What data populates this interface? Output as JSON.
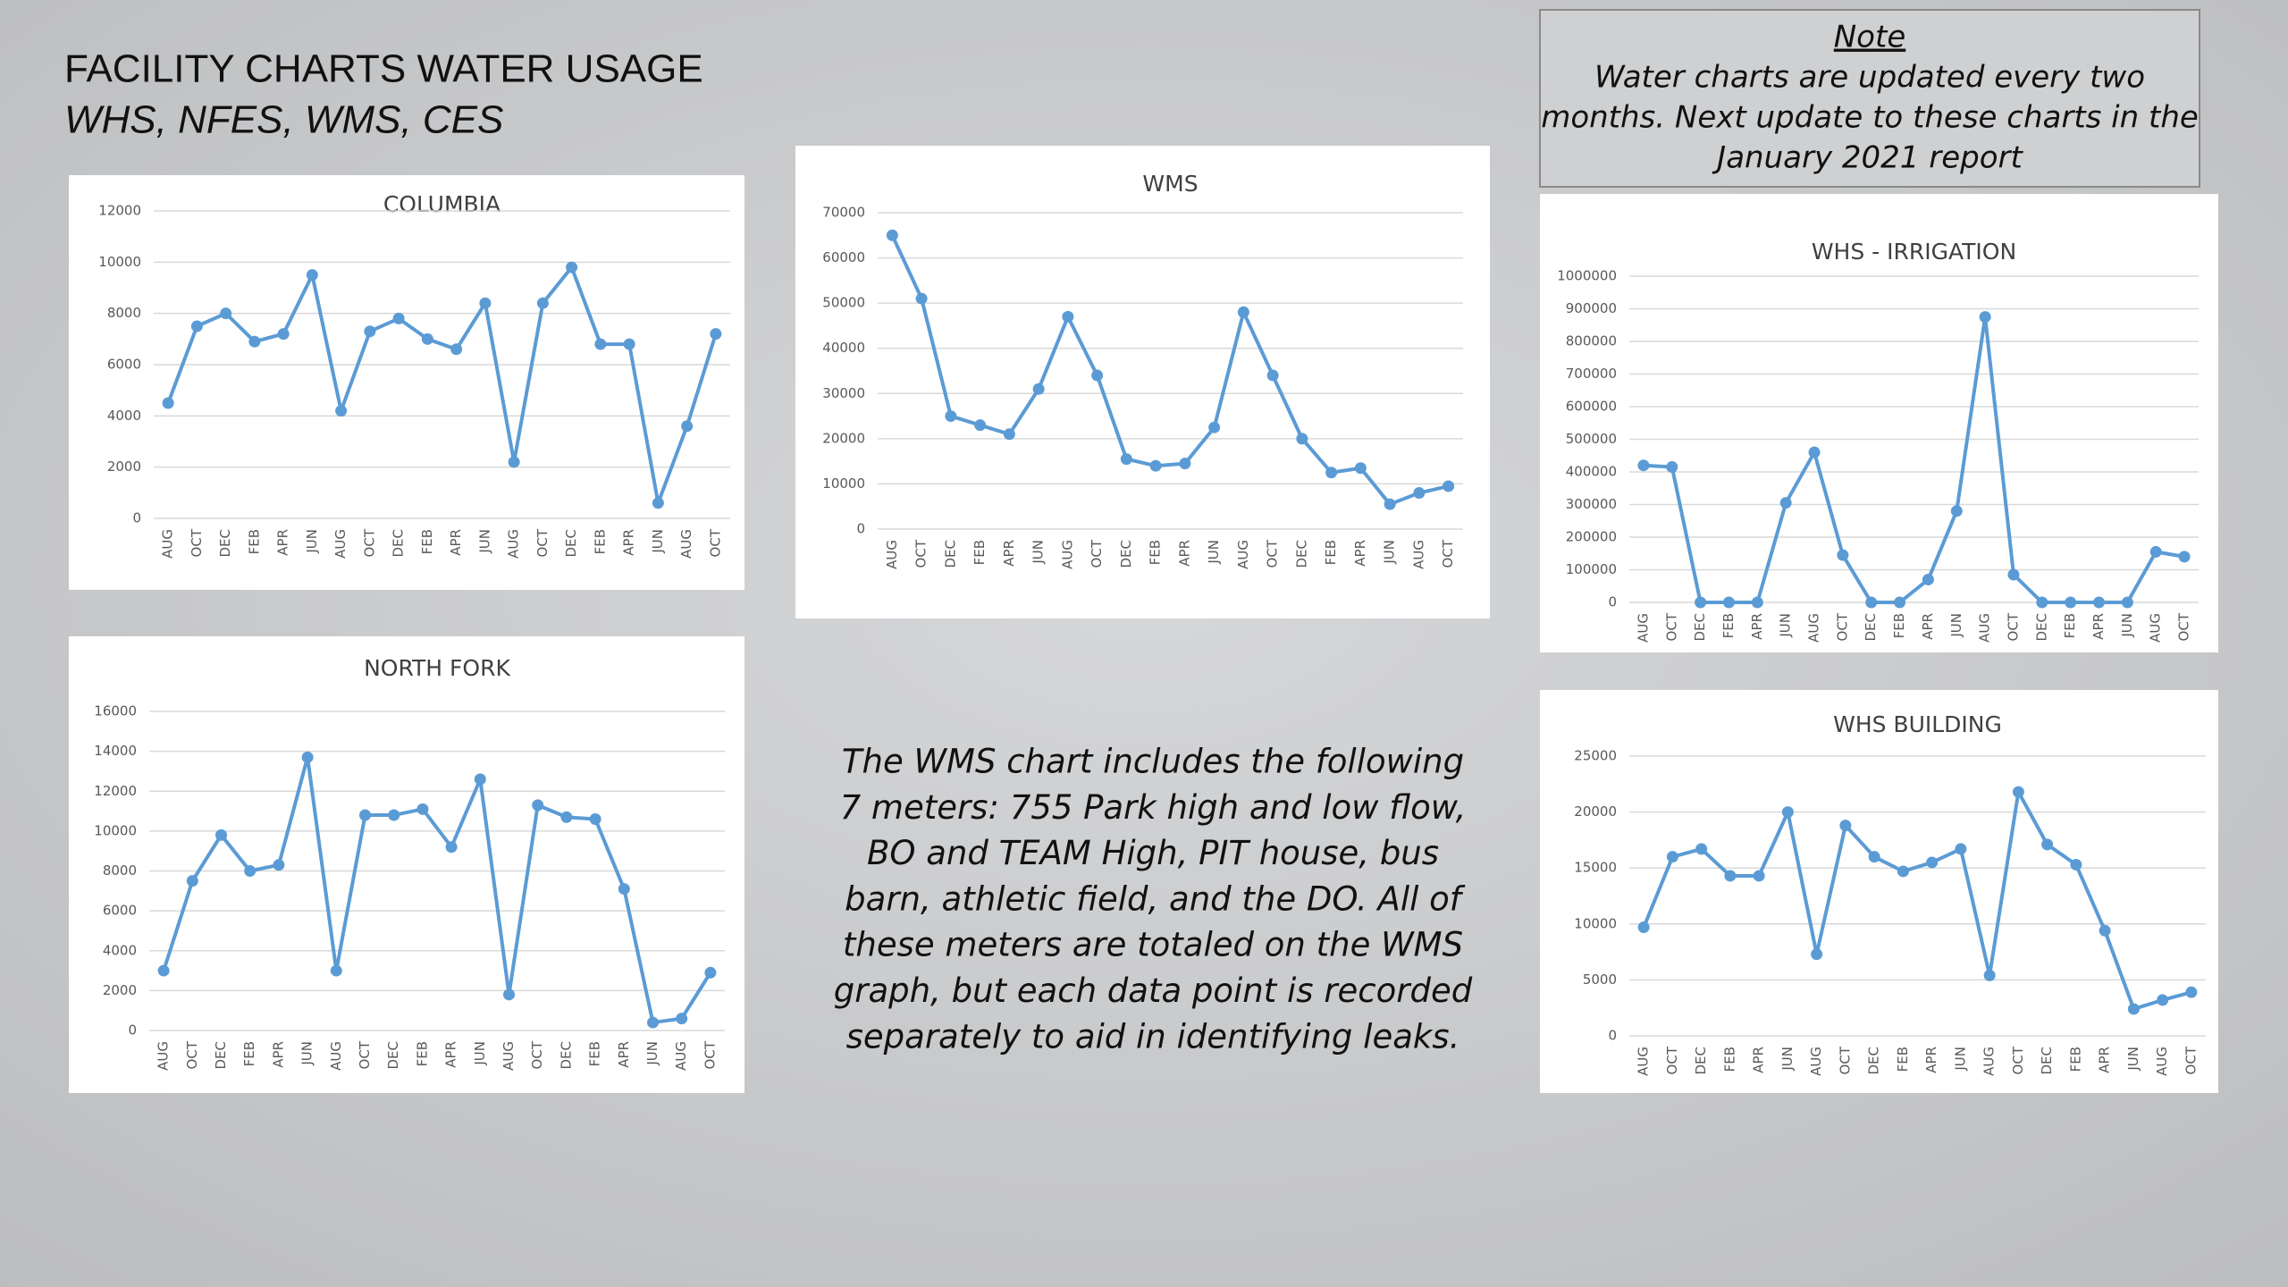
{
  "header": {
    "title": "FACILITY CHARTS WATER USAGE",
    "subtitle": "WHS, NFES, WMS, CES"
  },
  "note": {
    "title": "Note",
    "lines": [
      "Water charts are updated every two",
      "months. Next update to these charts in the",
      "January 2021 report"
    ]
  },
  "description": {
    "lines": [
      "The WMS chart includes the following",
      "7 meters: 755 Park high and low flow,",
      "BO and TEAM High, PIT house, bus",
      "barn, athletic field, and the DO. All of",
      "these meters are totaled on the WMS",
      "graph, but each data point is recorded",
      "separately to aid in identifying leaks."
    ]
  },
  "chart_data": [
    {
      "type": "line",
      "title": "COLUMBIA",
      "grid": true,
      "categories": [
        "AUG",
        "OCT",
        "DEC",
        "FEB",
        "APR",
        "JUN",
        "AUG",
        "OCT",
        "DEC",
        "FEB",
        "APR",
        "JUN",
        "AUG",
        "OCT",
        "DEC",
        "FEB",
        "APR",
        "JUN",
        "AUG",
        "OCT"
      ],
      "series": [
        {
          "color": "#5b9bd5",
          "values": [
            4500,
            7500,
            8000,
            6900,
            7200,
            9500,
            4200,
            7300,
            7800,
            7000,
            6600,
            8400,
            2200,
            8400,
            9800,
            6800,
            6800,
            600,
            3600,
            7200
          ]
        }
      ],
      "ylim": [
        0,
        12000
      ],
      "yticks": [
        0,
        2000,
        4000,
        6000,
        8000,
        10000,
        12000
      ]
    },
    {
      "type": "line",
      "title": "WMS",
      "grid": true,
      "categories": [
        "AUG",
        "OCT",
        "DEC",
        "FEB",
        "APR",
        "JUN",
        "AUG",
        "OCT",
        "DEC",
        "FEB",
        "APR",
        "JUN",
        "AUG",
        "OCT",
        "DEC",
        "FEB",
        "APR",
        "JUN",
        "AUG",
        "OCT"
      ],
      "series": [
        {
          "color": "#5b9bd5",
          "values": [
            65000,
            51000,
            25000,
            23000,
            21000,
            31000,
            47000,
            34000,
            15500,
            14000,
            14500,
            22500,
            48000,
            34000,
            20000,
            12500,
            13500,
            5500,
            8000,
            9500
          ]
        }
      ],
      "ylim": [
        0,
        70000
      ],
      "yticks": [
        0,
        10000,
        20000,
        30000,
        40000,
        50000,
        60000,
        70000
      ]
    },
    {
      "type": "line",
      "title": "WHS - IRRIGATION",
      "grid": true,
      "categories": [
        "AUG",
        "OCT",
        "DEC",
        "FEB",
        "APR",
        "JUN",
        "AUG",
        "OCT",
        "DEC",
        "FEB",
        "APR",
        "JUN",
        "AUG",
        "OCT",
        "DEC",
        "FEB",
        "APR",
        "JUN",
        "AUG",
        "OCT"
      ],
      "series": [
        {
          "color": "#5b9bd5",
          "values": [
            420000,
            415000,
            0,
            0,
            0,
            305000,
            460000,
            145000,
            0,
            0,
            70000,
            280000,
            875000,
            85000,
            0,
            0,
            0,
            0,
            155000,
            140000
          ]
        }
      ],
      "ylim": [
        0,
        1000000
      ],
      "yticks": [
        0,
        100000,
        200000,
        300000,
        400000,
        500000,
        600000,
        700000,
        800000,
        900000,
        1000000
      ]
    },
    {
      "type": "line",
      "title": "NORTH FORK",
      "grid": true,
      "categories": [
        "AUG",
        "OCT",
        "DEC",
        "FEB",
        "APR",
        "JUN",
        "AUG",
        "OCT",
        "DEC",
        "FEB",
        "APR",
        "JUN",
        "AUG",
        "OCT",
        "DEC",
        "FEB",
        "APR",
        "JUN",
        "AUG",
        "OCT"
      ],
      "series": [
        {
          "color": "#5b9bd5",
          "values": [
            3000,
            7500,
            9800,
            8000,
            8300,
            13700,
            3000,
            10800,
            10800,
            11100,
            9200,
            12600,
            1800,
            11300,
            10700,
            10600,
            7100,
            400,
            600,
            2900
          ]
        }
      ],
      "ylim": [
        0,
        16000
      ],
      "yticks": [
        0,
        2000,
        4000,
        6000,
        8000,
        10000,
        12000,
        14000,
        16000
      ]
    },
    {
      "type": "line",
      "title": "WHS BUILDING",
      "grid": true,
      "categories": [
        "AUG",
        "OCT",
        "DEC",
        "FEB",
        "APR",
        "JUN",
        "AUG",
        "OCT",
        "DEC",
        "FEB",
        "APR",
        "JUN",
        "AUG",
        "OCT",
        "DEC",
        "FEB",
        "APR",
        "JUN",
        "AUG",
        "OCT"
      ],
      "series": [
        {
          "color": "#5b9bd5",
          "values": [
            9700,
            16000,
            16700,
            14300,
            14300,
            20000,
            7300,
            18800,
            16000,
            14700,
            15500,
            16700,
            5400,
            21800,
            17100,
            15300,
            9400,
            2400,
            3200,
            3900
          ]
        }
      ],
      "ylim": [
        0,
        25000
      ],
      "yticks": [
        0,
        5000,
        10000,
        15000,
        20000,
        25000
      ]
    }
  ]
}
